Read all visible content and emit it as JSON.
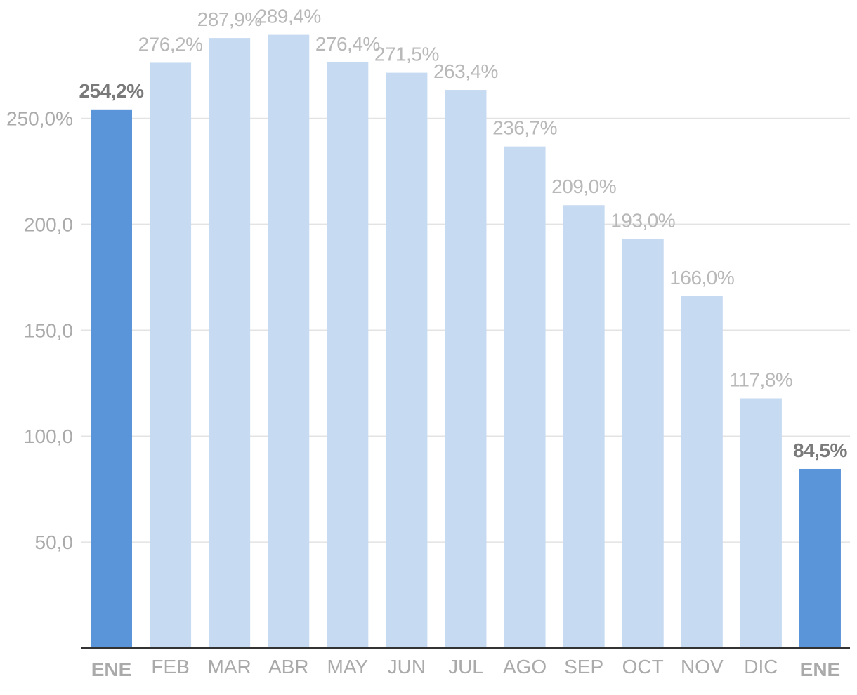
{
  "chart_data": {
    "type": "bar",
    "categories": [
      "ENE",
      "FEB",
      "MAR",
      "ABR",
      "MAY",
      "JUN",
      "JUL",
      "AGO",
      "SEP",
      "OCT",
      "NOV",
      "DIC",
      "ENE"
    ],
    "values": [
      254.2,
      276.2,
      287.9,
      289.4,
      276.4,
      271.5,
      263.4,
      236.7,
      209.0,
      193.0,
      166.0,
      117.8,
      84.5
    ],
    "data_labels": [
      "254,2%",
      "276,2%",
      "287,9%",
      "289,4%",
      "276,4%",
      "271,5%",
      "263,4%",
      "236,7%",
      "209,0%",
      "193,0%",
      "166,0%",
      "117,8%",
      "84,5%"
    ],
    "highlighted": [
      true,
      false,
      false,
      false,
      false,
      false,
      false,
      false,
      false,
      false,
      false,
      false,
      true
    ],
    "y_ticks": [
      50,
      100,
      150,
      200,
      250
    ],
    "y_tick_labels": [
      "50,0",
      "100,0",
      "150,0",
      "200,0",
      "250,0%"
    ],
    "ylim": [
      0,
      300
    ],
    "grid": true,
    "title": "",
    "xlabel": "",
    "ylabel": "",
    "colors": {
      "highlight_bar": "#5b95d9",
      "bar": "#c6daf1",
      "highlight_label": "#7a7a7a",
      "label": "#b8b8b8",
      "axis_text": "#aaaaaa"
    }
  }
}
